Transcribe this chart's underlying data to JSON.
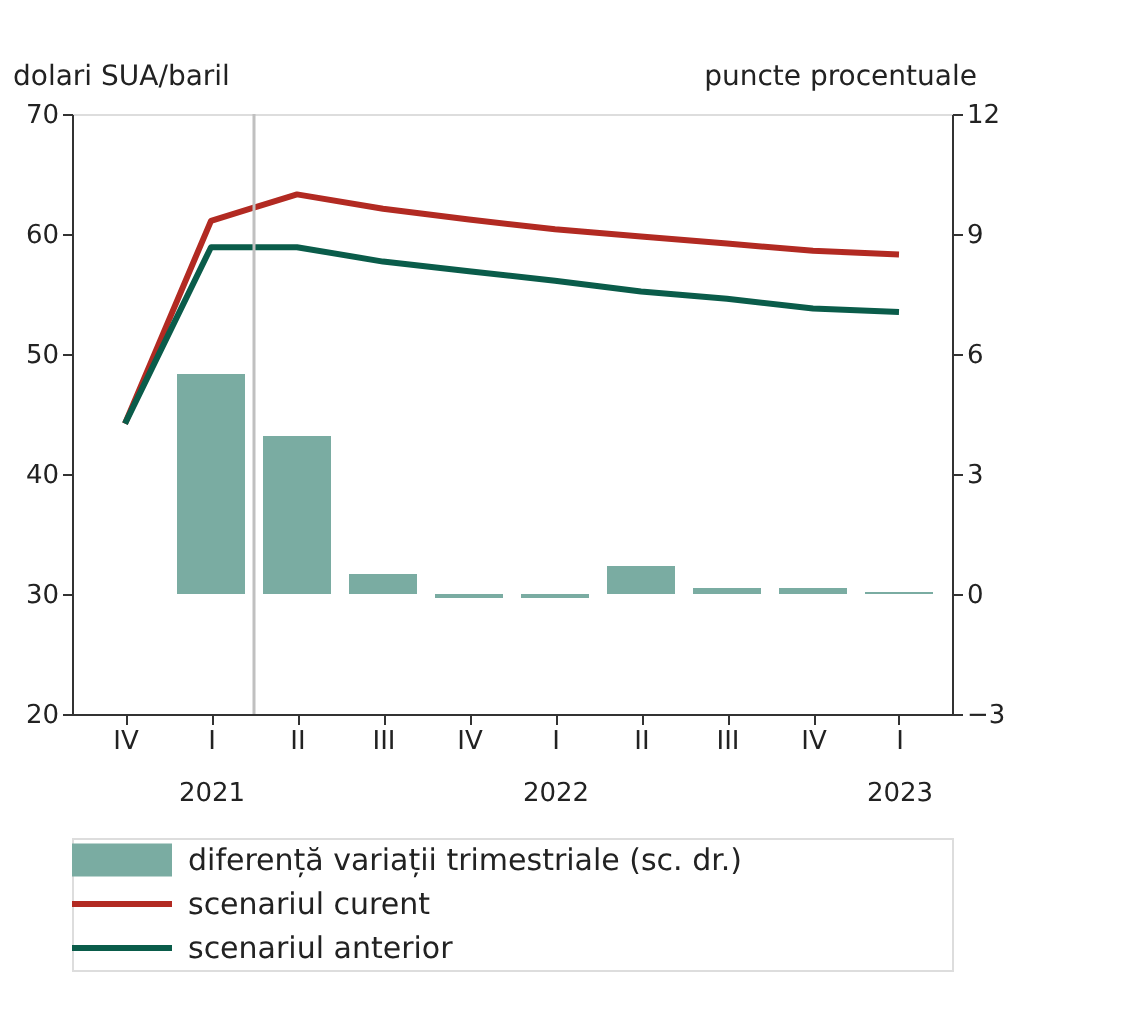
{
  "chart_data": {
    "type": "line",
    "categories": [
      "IV",
      "I\n2021",
      "II",
      "III",
      "IV",
      "I\n2022",
      "II",
      "III",
      "IV",
      "I\n2023"
    ],
    "ylabel": "dolari SUA/baril",
    "y2label": "puncte procentuale",
    "ylim": [
      20,
      70
    ],
    "yticks": [
      20,
      30,
      40,
      50,
      60,
      70
    ],
    "y2lim": [
      -3,
      12
    ],
    "y2ticks": [
      -3,
      0,
      3,
      6,
      9,
      12
    ],
    "series": [
      {
        "name": "diferență variații trimestriale (sc. dr.)",
        "type": "bar",
        "axis": "y2",
        "color": "#7aaca2",
        "values": [
          null,
          5.5,
          3.95,
          0.5,
          -0.1,
          -0.1,
          0.7,
          0.15,
          0.15,
          0.05
        ]
      },
      {
        "name": "scenariul curent",
        "color": "#b22a22",
        "values": [
          44.2,
          61.1,
          63.3,
          62.1,
          61.2,
          60.4,
          59.8,
          59.2,
          58.6,
          58.3
        ]
      },
      {
        "name": "scenariul anterior",
        "color": "#0a5c4a",
        "values": [
          44.2,
          58.9,
          58.9,
          57.7,
          56.9,
          56.1,
          55.2,
          54.6,
          53.8,
          53.5
        ]
      }
    ],
    "grid": false,
    "legend": "bottom",
    "marker": "none",
    "line_style": "solid"
  }
}
